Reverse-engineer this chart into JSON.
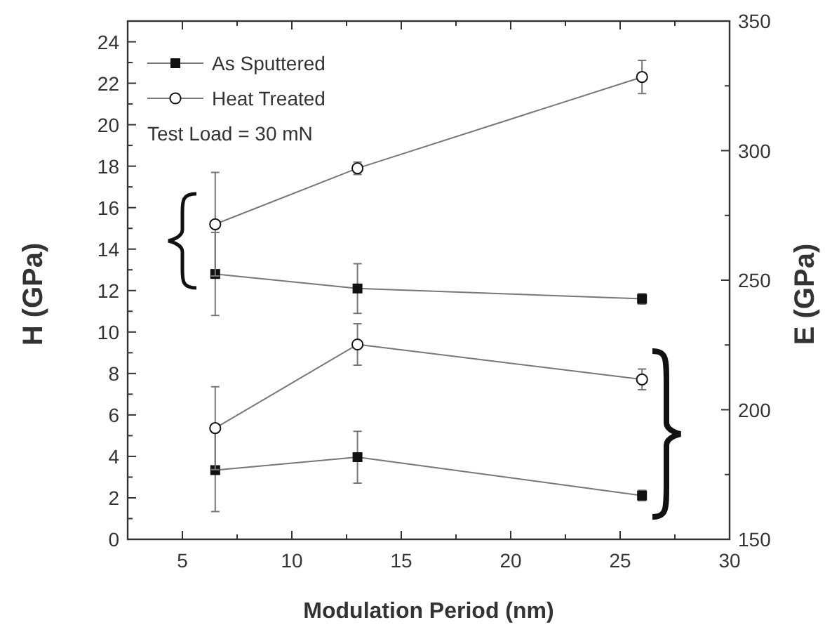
{
  "chart_data": {
    "type": "line",
    "xlabel": "Modulation Period (nm)",
    "ylabel": "H (GPa)",
    "y2label": "E (GPa)",
    "x": [
      6.5,
      13,
      26
    ],
    "xlim": [
      2.5,
      30
    ],
    "xticks": [
      {
        "value": 2.5,
        "label": null
      },
      5,
      {
        "value": 7.5,
        "label": null
      },
      10,
      {
        "value": 12.5,
        "label": null
      },
      15,
      {
        "value": 17.5,
        "label": null
      },
      20,
      {
        "value": 22.5,
        "label": null
      },
      25,
      {
        "value": 27.5,
        "label": null
      },
      30
    ],
    "ylim": [
      0,
      25
    ],
    "yticks": [
      0,
      {
        "value": 1,
        "label": null
      },
      2,
      {
        "value": 3,
        "label": null
      },
      4,
      {
        "value": 5,
        "label": null
      },
      6,
      {
        "value": 7,
        "label": null
      },
      8,
      {
        "value": 9,
        "label": null
      },
      10,
      {
        "value": 11,
        "label": null
      },
      12,
      {
        "value": 13,
        "label": null
      },
      14,
      {
        "value": 15,
        "label": null
      },
      16,
      {
        "value": 17,
        "label": null
      },
      18,
      {
        "value": 19,
        "label": null
      },
      20,
      {
        "value": 21,
        "label": null
      },
      22,
      {
        "value": 23,
        "label": null
      },
      24
    ],
    "y2lim": [
      150,
      350
    ],
    "y2ticks": [
      150,
      {
        "value": 175,
        "label": null
      },
      200,
      {
        "value": 225,
        "label": null
      },
      250,
      {
        "value": 275,
        "label": null
      },
      300,
      {
        "value": 325,
        "label": null
      },
      350
    ],
    "series": [
      {
        "name": "As Sputtered",
        "color": "#111111",
        "marker": "square",
        "values": [
          12.8,
          12.1,
          11.6
        ],
        "errors": [
          2.0,
          1.2,
          0.25
        ]
      },
      {
        "name": "Heat Treated",
        "color": "#111111",
        "marker": "circle",
        "values": [
          15.2,
          17.9,
          22.3
        ],
        "errors": [
          2.5,
          0.3,
          0.8
        ]
      },
      {
        "color": "#111111",
        "marker": "square",
        "axis": "y2",
        "values": [
          176.7,
          181.7,
          166.9
        ],
        "errors": [
          16,
          10,
          2
        ]
      },
      {
        "color": "#111111",
        "marker": "circle",
        "axis": "y2",
        "values": [
          192.9,
          225.2,
          211.7
        ],
        "errors": [
          16,
          8,
          4
        ]
      }
    ],
    "legend": "top left",
    "grid": false,
    "annotations": [
      "Test Load = 30 mN"
    ]
  }
}
